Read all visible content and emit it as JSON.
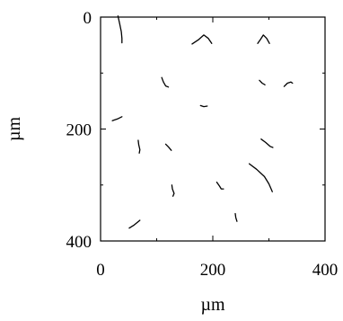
{
  "chart_data": {
    "type": "line",
    "title": "",
    "xlabel": "µm",
    "ylabel": "µm",
    "xlim": [
      0,
      400
    ],
    "ylim": [
      0,
      400
    ],
    "y_inverted": true,
    "grid": false,
    "legend": "none",
    "xticks": [
      0,
      200,
      400
    ],
    "yticks": [
      0,
      200,
      400
    ],
    "xtick_labels": [
      "0",
      "200",
      "400"
    ],
    "ytick_labels": [
      "0",
      "200",
      "400"
    ],
    "line_color": "#000000",
    "series": [
      {
        "x": [
          31,
          34,
          37,
          38,
          38
        ],
        "y": [
          -2,
          12,
          26,
          38,
          46
        ]
      },
      {
        "x": [
          163,
          175,
          184,
          192,
          198
        ],
        "y": [
          48,
          40,
          32,
          38,
          47
        ]
      },
      {
        "x": [
          280,
          285,
          290,
          296,
          301
        ],
        "y": [
          47,
          40,
          32,
          38,
          47
        ]
      },
      {
        "x": [
          109,
          112,
          116,
          121
        ],
        "y": [
          108,
          116,
          123,
          125
        ]
      },
      {
        "x": [
          283,
          288,
          293
        ],
        "y": [
          113,
          118,
          121
        ]
      },
      {
        "x": [
          327,
          333,
          339,
          342
        ],
        "y": [
          124,
          118,
          116,
          118
        ]
      },
      {
        "x": [
          178,
          184,
          190
        ],
        "y": [
          158,
          160,
          159
        ]
      },
      {
        "x": [
          21,
          30,
          38
        ],
        "y": [
          185,
          182,
          178
        ]
      },
      {
        "x": [
          67,
          68,
          70,
          69
        ],
        "y": [
          220,
          228,
          237,
          243
        ]
      },
      {
        "x": [
          116,
          121,
          126
        ],
        "y": [
          227,
          232,
          238
        ]
      },
      {
        "x": [
          286,
          294,
          302,
          307
        ],
        "y": [
          218,
          224,
          231,
          233
        ]
      },
      {
        "x": [
          265,
          278,
          292,
          300,
          306
        ],
        "y": [
          262,
          272,
          285,
          298,
          312
        ]
      },
      {
        "x": [
          207,
          212,
          215,
          219
        ],
        "y": [
          295,
          302,
          307,
          307
        ]
      },
      {
        "x": [
          127,
          128,
          131,
          129
        ],
        "y": [
          300,
          307,
          315,
          320
        ]
      },
      {
        "x": [
          240,
          241,
          243
        ],
        "y": [
          351,
          358,
          365
        ]
      },
      {
        "x": [
          51,
          59,
          70
        ],
        "y": [
          377,
          372,
          363
        ]
      }
    ]
  }
}
